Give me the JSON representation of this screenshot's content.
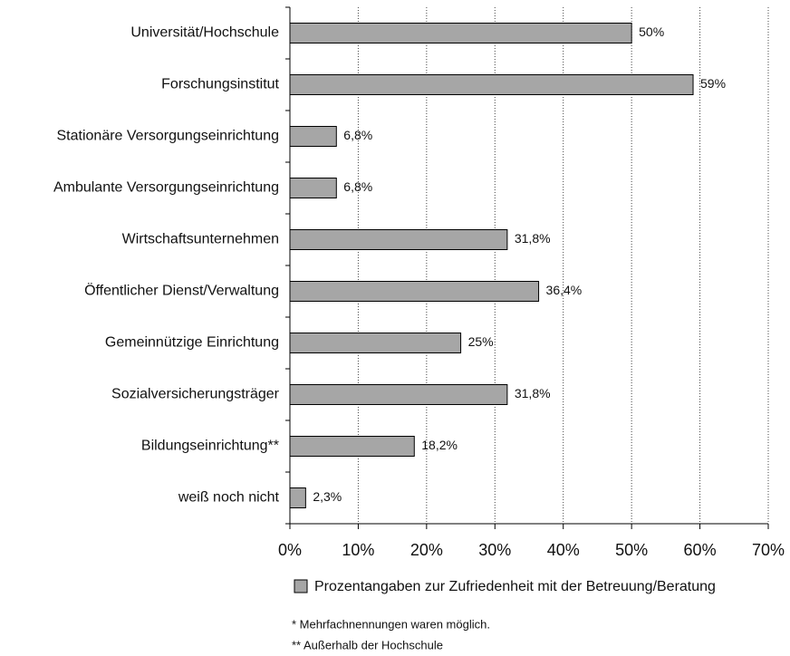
{
  "chart_data": {
    "type": "bar",
    "orientation": "horizontal",
    "categories": [
      "Universität/Hochschule",
      "Forschungsinstitut",
      "Stationäre Versorgungseinrichtung",
      "Ambulante Versorgungseinrichtung",
      "Wirtschaftsunternehmen",
      "Öffentlicher Dienst/Verwaltung",
      "Gemeinnützige Einrichtung",
      "Sozialversicherungsträger",
      "Bildungseinrichtung**",
      "weiß noch nicht"
    ],
    "series": [
      {
        "name": "Prozentangaben zur Zufriedenheit mit der Betreuung/Beratung",
        "color": "#a6a6a6",
        "values": [
          50,
          59,
          6.8,
          6.8,
          31.8,
          36.4,
          25,
          31.8,
          18.2,
          2.3
        ],
        "value_labels": [
          "50%",
          "59%",
          "6,8%",
          "6,8%",
          "31,8%",
          "36,4%",
          "25%",
          "31,8%",
          "18,2%",
          "2,3%"
        ]
      }
    ],
    "xlim": [
      0,
      70
    ],
    "xticks": [
      {
        "value": 0,
        "label": "0%"
      },
      {
        "value": 10,
        "label": "10%"
      },
      {
        "value": 20,
        "label": "20%"
      },
      {
        "value": 30,
        "label": "30%"
      },
      {
        "value": 40,
        "label": "40%"
      },
      {
        "value": 50,
        "label": "50%"
      },
      {
        "value": 60,
        "label": "60%"
      },
      {
        "value": 70,
        "label": "70%"
      }
    ],
    "grid": true,
    "annotations": [
      "* Mehrfachnennungen waren möglich.",
      "** Außerhalb der Hochschule"
    ]
  }
}
